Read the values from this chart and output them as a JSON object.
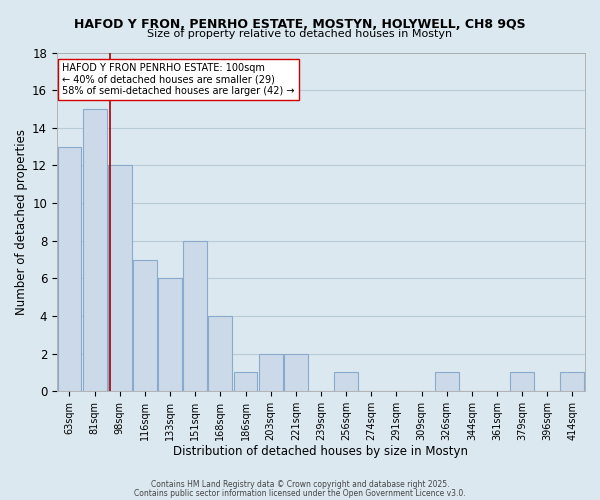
{
  "title": "HAFOD Y FRON, PENRHO ESTATE, MOSTYN, HOLYWELL, CH8 9QS",
  "subtitle": "Size of property relative to detached houses in Mostyn",
  "xlabel": "Distribution of detached houses by size in Mostyn",
  "ylabel": "Number of detached properties",
  "bar_color": "#ccd9e8",
  "bar_edge_color": "#88aacc",
  "categories": [
    "63sqm",
    "81sqm",
    "98sqm",
    "116sqm",
    "133sqm",
    "151sqm",
    "168sqm",
    "186sqm",
    "203sqm",
    "221sqm",
    "239sqm",
    "256sqm",
    "274sqm",
    "291sqm",
    "309sqm",
    "326sqm",
    "344sqm",
    "361sqm",
    "379sqm",
    "396sqm",
    "414sqm"
  ],
  "values": [
    13,
    15,
    12,
    7,
    6,
    8,
    4,
    1,
    2,
    2,
    0,
    1,
    0,
    0,
    0,
    1,
    0,
    0,
    1,
    0,
    1
  ],
  "ylim": [
    0,
    18
  ],
  "yticks": [
    0,
    2,
    4,
    6,
    8,
    10,
    12,
    14,
    16,
    18
  ],
  "vline_index": 2,
  "vline_color": "#aa0000",
  "annotation_title": "HAFOD Y FRON PENRHO ESTATE: 100sqm",
  "annotation_line1": "← 40% of detached houses are smaller (29)",
  "annotation_line2": "58% of semi-detached houses are larger (42) →",
  "background_color": "#dce8f0",
  "grid_color": "#b8ccd8",
  "footer1": "Contains HM Land Registry data © Crown copyright and database right 2025.",
  "footer2": "Contains public sector information licensed under the Open Government Licence v3.0."
}
